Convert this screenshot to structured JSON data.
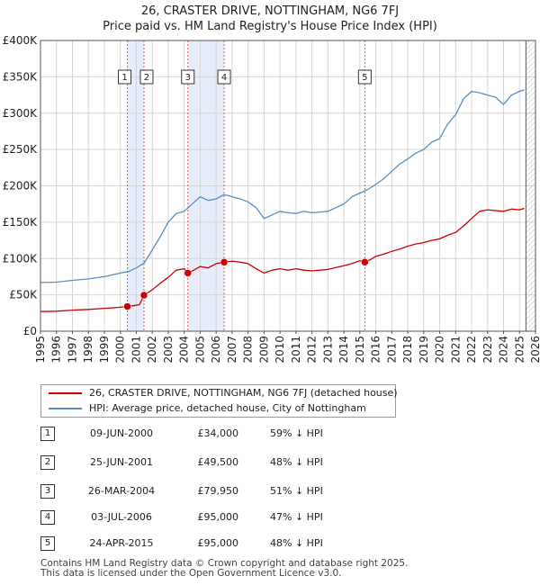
{
  "title": {
    "line1": "26, CRASTER DRIVE, NOTTINGHAM, NG6 7FJ",
    "line2": "Price paid vs. HM Land Registry's House Price Index (HPI)"
  },
  "colors": {
    "property": "#cc0000",
    "hpi": "#5b8ec4",
    "shade": "#e6ecf9",
    "grid": "#d6d6d6",
    "future_hatch": "#bbbbbb"
  },
  "chart_data": {
    "type": "line",
    "title": "Price paid vs. HM Land Registry's House Price Index (HPI)",
    "xlabel": "",
    "ylabel": "",
    "xlim": [
      1995,
      2026
    ],
    "ylim": [
      0,
      400000
    ],
    "y_ticks": [
      0,
      50000,
      100000,
      150000,
      200000,
      250000,
      300000,
      350000,
      400000
    ],
    "y_tick_labels": [
      "£0",
      "£50K",
      "£100K",
      "£150K",
      "£200K",
      "£250K",
      "£300K",
      "£350K",
      "£400K"
    ],
    "x_ticks": [
      1995,
      1996,
      1997,
      1998,
      1999,
      2000,
      2001,
      2002,
      2003,
      2004,
      2005,
      2006,
      2007,
      2008,
      2009,
      2010,
      2011,
      2012,
      2013,
      2014,
      2015,
      2016,
      2017,
      2018,
      2019,
      2020,
      2021,
      2022,
      2023,
      2024,
      2025,
      2026
    ],
    "grid": true,
    "future_hatch_from": 2025.4,
    "series": [
      {
        "name": "26, CRASTER DRIVE, NOTTINGHAM, NG6 7FJ (detached house)",
        "color": "#cc0000",
        "x": [
          1995,
          1996,
          1997,
          1998,
          1999,
          2000,
          2000.44,
          2000.8,
          2001.2,
          2001.48,
          2002,
          2002.5,
          2003,
          2003.5,
          2004,
          2004.23,
          2004.6,
          2005,
          2005.5,
          2006,
          2006.5,
          2007,
          2007.5,
          2008,
          2008.5,
          2009,
          2009.5,
          2010,
          2010.5,
          2011,
          2011.5,
          2012,
          2012.5,
          2013,
          2013.5,
          2014,
          2014.5,
          2015,
          2015.31,
          2015.7,
          2016,
          2016.5,
          2017,
          2017.5,
          2018,
          2018.5,
          2019,
          2019.5,
          2020,
          2020.5,
          2021,
          2021.5,
          2022,
          2022.5,
          2023,
          2023.5,
          2024,
          2024.5,
          2025,
          2025.3
        ],
        "values": [
          27000,
          27500,
          29000,
          30000,
          31500,
          33000,
          34000,
          35000,
          36500,
          49500,
          57000,
          66000,
          74000,
          84000,
          86000,
          79950,
          84000,
          89000,
          87000,
          93000,
          95000,
          96500,
          95000,
          93000,
          86000,
          80000,
          84000,
          86000,
          84000,
          86000,
          84000,
          83000,
          84000,
          85000,
          87500,
          90000,
          93000,
          97000,
          95000,
          99000,
          103000,
          106000,
          110000,
          113000,
          117000,
          120000,
          122000,
          125000,
          127000,
          132000,
          136000,
          145000,
          155000,
          165000,
          167000,
          166000,
          165000,
          168000,
          167000,
          169000
        ]
      },
      {
        "name": "HPI: Average price, detached house, City of Nottingham",
        "color": "#5b8ec4",
        "x": [
          1995,
          1996,
          1997,
          1998,
          1999,
          2000,
          2000.5,
          2001,
          2001.5,
          2002,
          2002.5,
          2003,
          2003.5,
          2004,
          2004.5,
          2005,
          2005.5,
          2006,
          2006.5,
          2007,
          2007.5,
          2008,
          2008.5,
          2009,
          2009.5,
          2010,
          2010.5,
          2011,
          2011.5,
          2012,
          2012.5,
          2013,
          2013.5,
          2014,
          2014.5,
          2015,
          2015.5,
          2016,
          2016.5,
          2017,
          2017.5,
          2018,
          2018.5,
          2019,
          2019.5,
          2020,
          2020.5,
          2021,
          2021.5,
          2022,
          2022.5,
          2023,
          2023.5,
          2024,
          2024.5,
          2025,
          2025.3
        ],
        "values": [
          67000,
          67500,
          70000,
          72000,
          75000,
          80000,
          82000,
          87000,
          94000,
          112000,
          130000,
          150000,
          162000,
          165000,
          175000,
          185000,
          180000,
          182000,
          188000,
          185000,
          182000,
          178000,
          170000,
          155000,
          160000,
          165000,
          163000,
          162000,
          165000,
          163000,
          164000,
          165000,
          170000,
          175000,
          185000,
          190000,
          195000,
          202000,
          210000,
          220000,
          230000,
          237000,
          245000,
          250000,
          260000,
          265000,
          285000,
          298000,
          320000,
          330000,
          328000,
          325000,
          322000,
          312000,
          325000,
          330000,
          332000
        ]
      }
    ],
    "transactions": [
      {
        "label": "1",
        "x": 2000.44,
        "value": 34000
      },
      {
        "label": "2",
        "x": 2001.48,
        "value": 49500
      },
      {
        "label": "3",
        "x": 2004.23,
        "value": 79950
      },
      {
        "label": "4",
        "x": 2006.5,
        "value": 95000
      },
      {
        "label": "5",
        "x": 2015.31,
        "value": 95000
      }
    ],
    "shaded_spans": [
      [
        2000.44,
        2001.48
      ],
      [
        2004.23,
        2006.5
      ]
    ]
  },
  "legend": {
    "property_label": "26, CRASTER DRIVE, NOTTINGHAM, NG6 7FJ (detached house)",
    "hpi_label": "HPI: Average price, detached house, City of Nottingham"
  },
  "table": {
    "rows": [
      {
        "num": "1",
        "date": "09-JUN-2000",
        "price": "£34,000",
        "hpi": "59% ↓ HPI"
      },
      {
        "num": "2",
        "date": "25-JUN-2001",
        "price": "£49,500",
        "hpi": "48% ↓ HPI"
      },
      {
        "num": "3",
        "date": "26-MAR-2004",
        "price": "£79,950",
        "hpi": "51% ↓ HPI"
      },
      {
        "num": "4",
        "date": "03-JUL-2006",
        "price": "£95,000",
        "hpi": "47% ↓ HPI"
      },
      {
        "num": "5",
        "date": "24-APR-2015",
        "price": "£95,000",
        "hpi": "48% ↓ HPI"
      }
    ]
  },
  "footer": {
    "line1": "Contains HM Land Registry data © Crown copyright and database right 2025.",
    "line2": "This data is licensed under the Open Government Licence v3.0."
  }
}
